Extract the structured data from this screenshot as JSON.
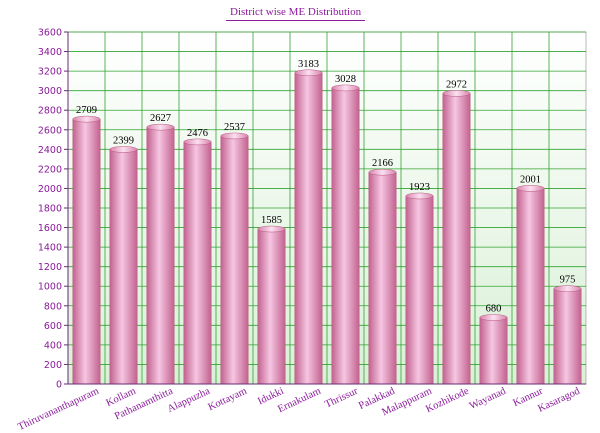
{
  "chart_data": {
    "type": "bar",
    "title": "District wise ME Distribution",
    "xlabel": "",
    "ylabel": "",
    "ylim": [
      0,
      3600
    ],
    "y_ticks": [
      0,
      200,
      400,
      600,
      800,
      1000,
      1200,
      1400,
      1600,
      1800,
      2000,
      2200,
      2400,
      2600,
      2800,
      3000,
      3200,
      3400,
      3600
    ],
    "grid": true,
    "legend": "none",
    "categories": [
      "Thiruvananthapuram",
      "Kollam",
      "Pathanamthitta",
      "Alappuzha",
      "Kottayam",
      "Idukki",
      "Ernakulam",
      "Thrissur",
      "Palakkad",
      "Malappuram",
      "Kozhikode",
      "Wayanad",
      "Kannur",
      "Kasaragod"
    ],
    "values": [
      2709,
      2399,
      2627,
      2476,
      2537,
      1585,
      3183,
      3028,
      2166,
      1923,
      2972,
      680,
      2001,
      975
    ],
    "colors": {
      "bar_light": "#f6c6e2",
      "bar_dark": "#c2638f",
      "grid": "#31a331",
      "plot_bg_top": "#ffffff",
      "plot_bg_bottom": "#d9f0d6",
      "label": "#8a1a9a"
    }
  }
}
